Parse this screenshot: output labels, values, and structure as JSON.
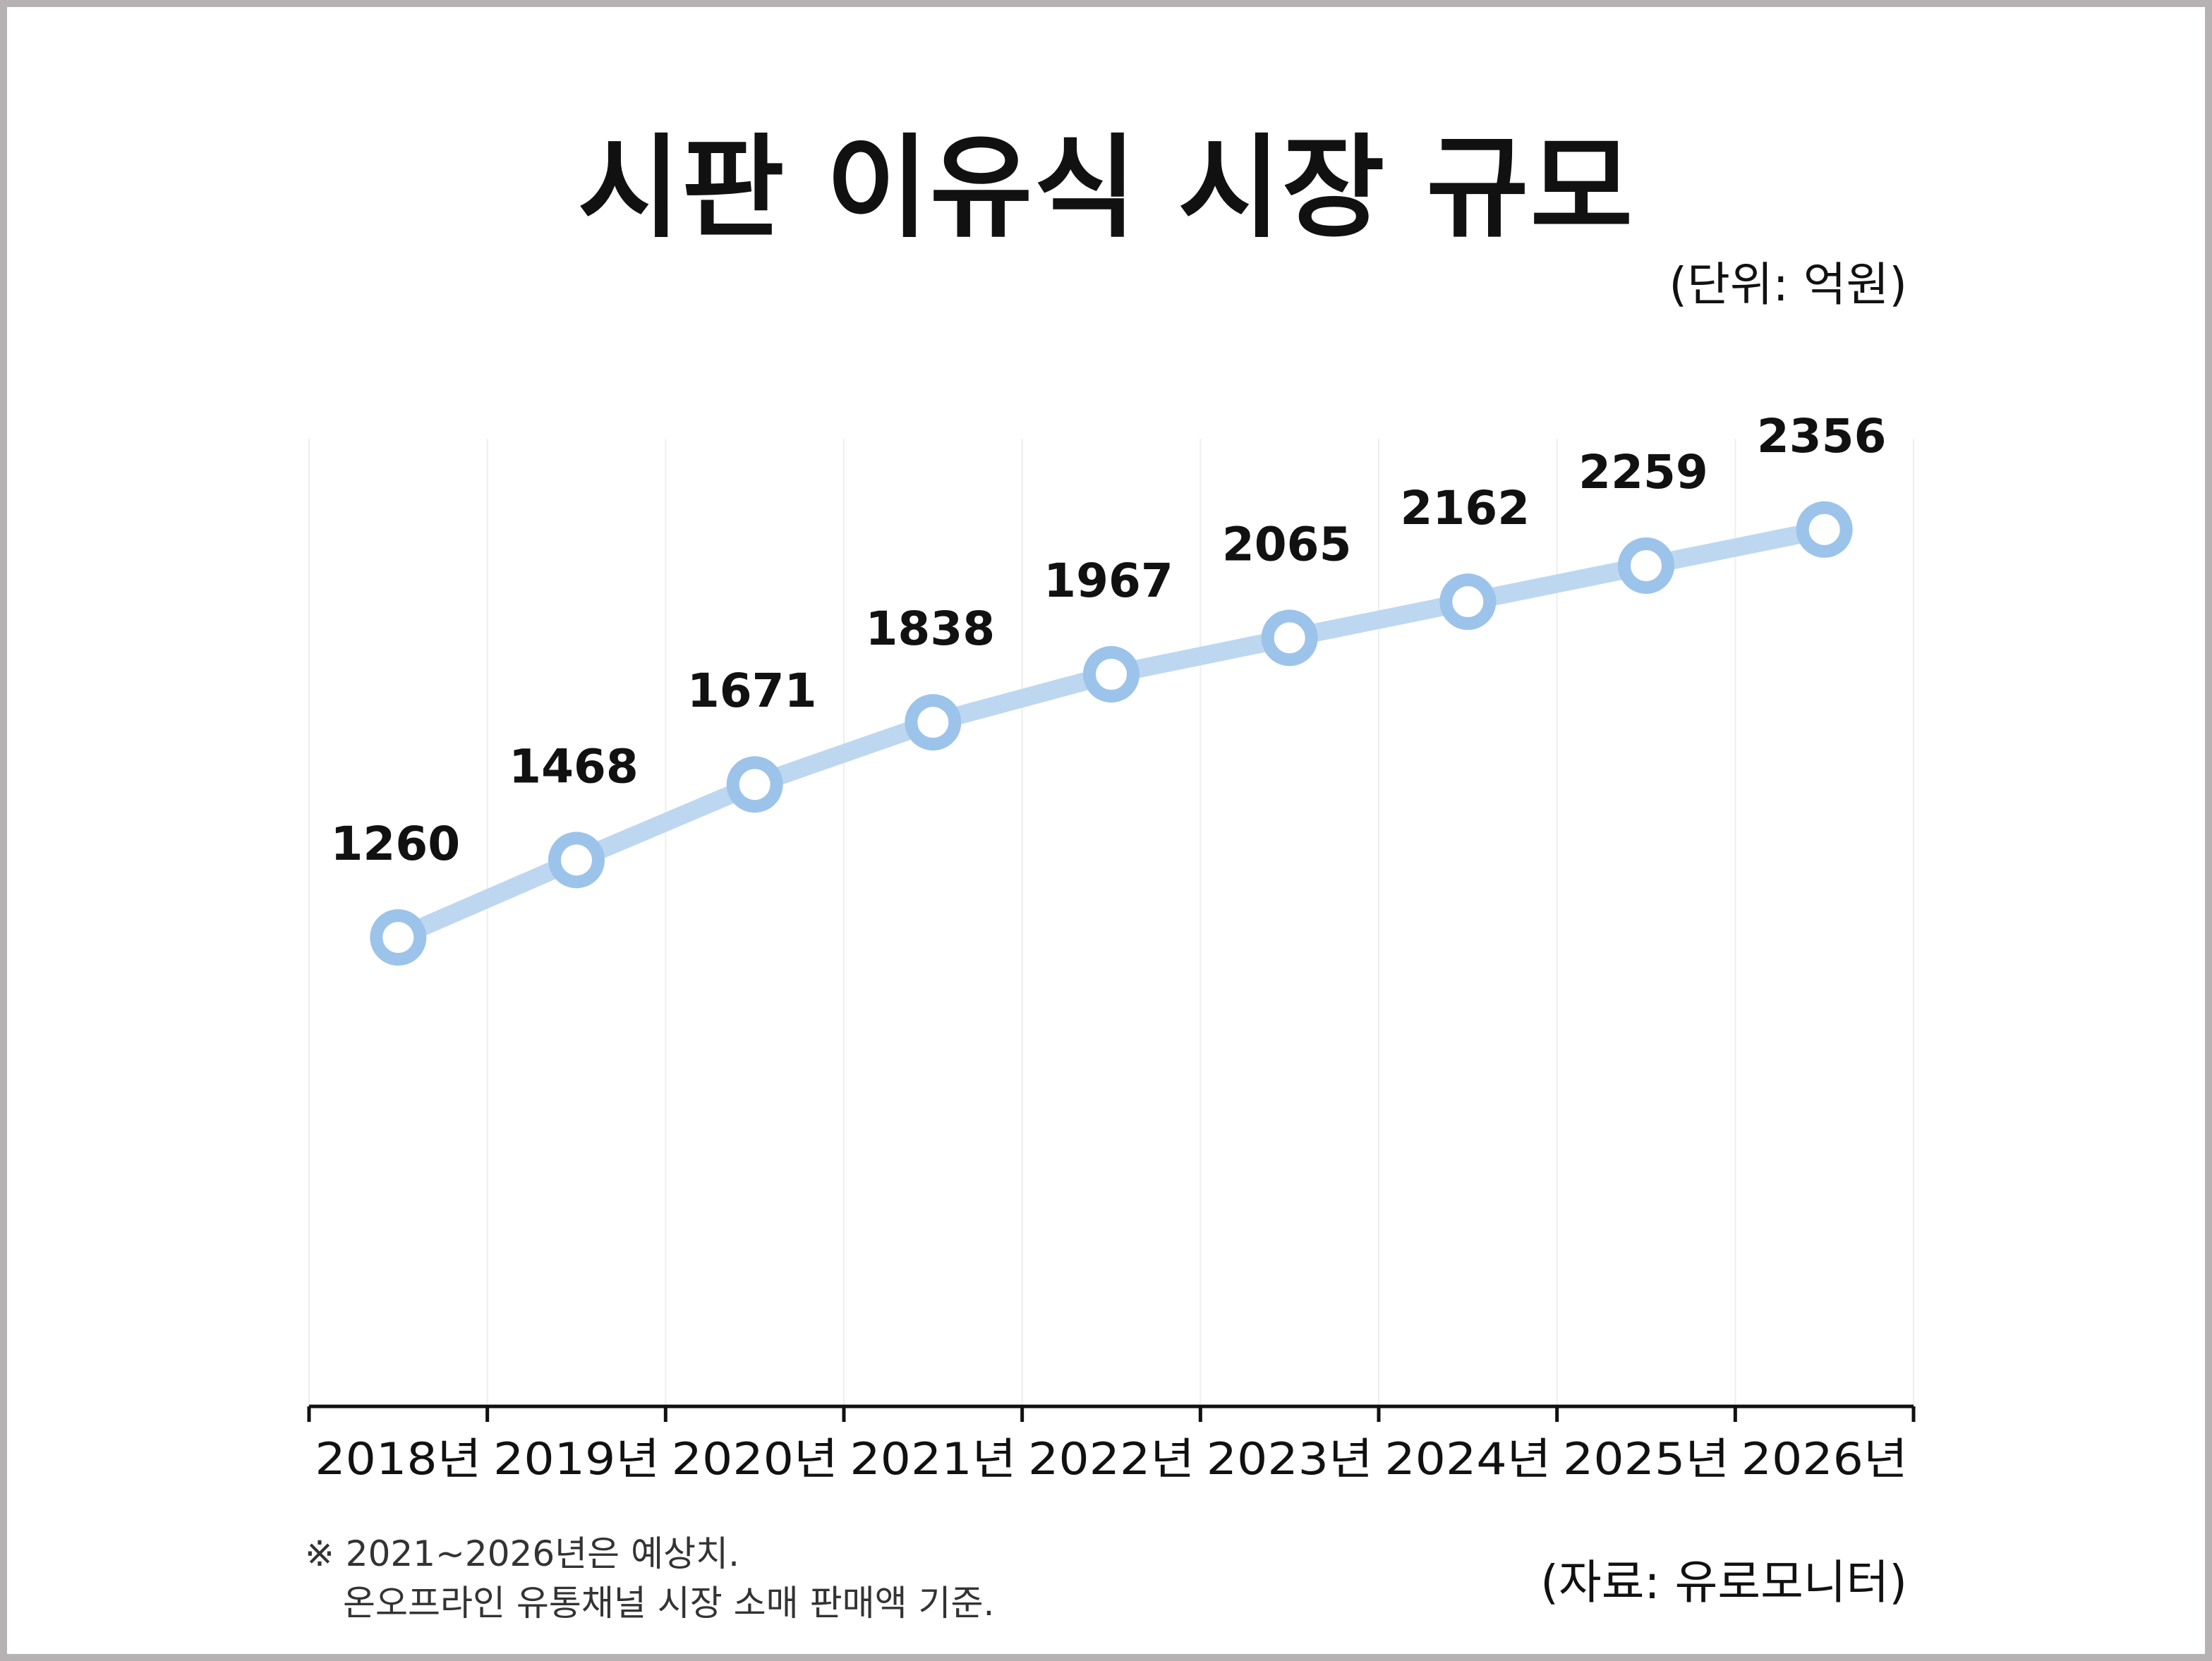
{
  "title": "시판 이유식 시장 규모",
  "unit_label": "(단위: 억원)",
  "source": "(자료: 유로모니터)",
  "footnote": {
    "line1": "※ 2021~2026년은 예상치.",
    "line2": "온오프라인 유통채널 시장 소매 판매액 기준."
  },
  "colors": {
    "line": "#bdd7f0",
    "marker": "#9cc3ea",
    "grid": "#eeeeee",
    "axis": "#111111",
    "text": "#111111"
  },
  "chart_data": {
    "type": "line",
    "categories": [
      "2018년",
      "2019년",
      "2020년",
      "2021년",
      "2022년",
      "2023년",
      "2024년",
      "2025년",
      "2026년"
    ],
    "values": [
      1260,
      1468,
      1671,
      1838,
      1967,
      2065,
      2162,
      2259,
      2356
    ],
    "data_labels": [
      "1260",
      "1468",
      "1671",
      "1838",
      "1967",
      "2065",
      "2162",
      "2259",
      "2356"
    ],
    "title": "시판 이유식 시장 규모",
    "ylabel": "(단위: 억원)",
    "xlabel": "",
    "ylim": [
      0,
      2600
    ],
    "grid": "vertical",
    "legend": "none"
  }
}
